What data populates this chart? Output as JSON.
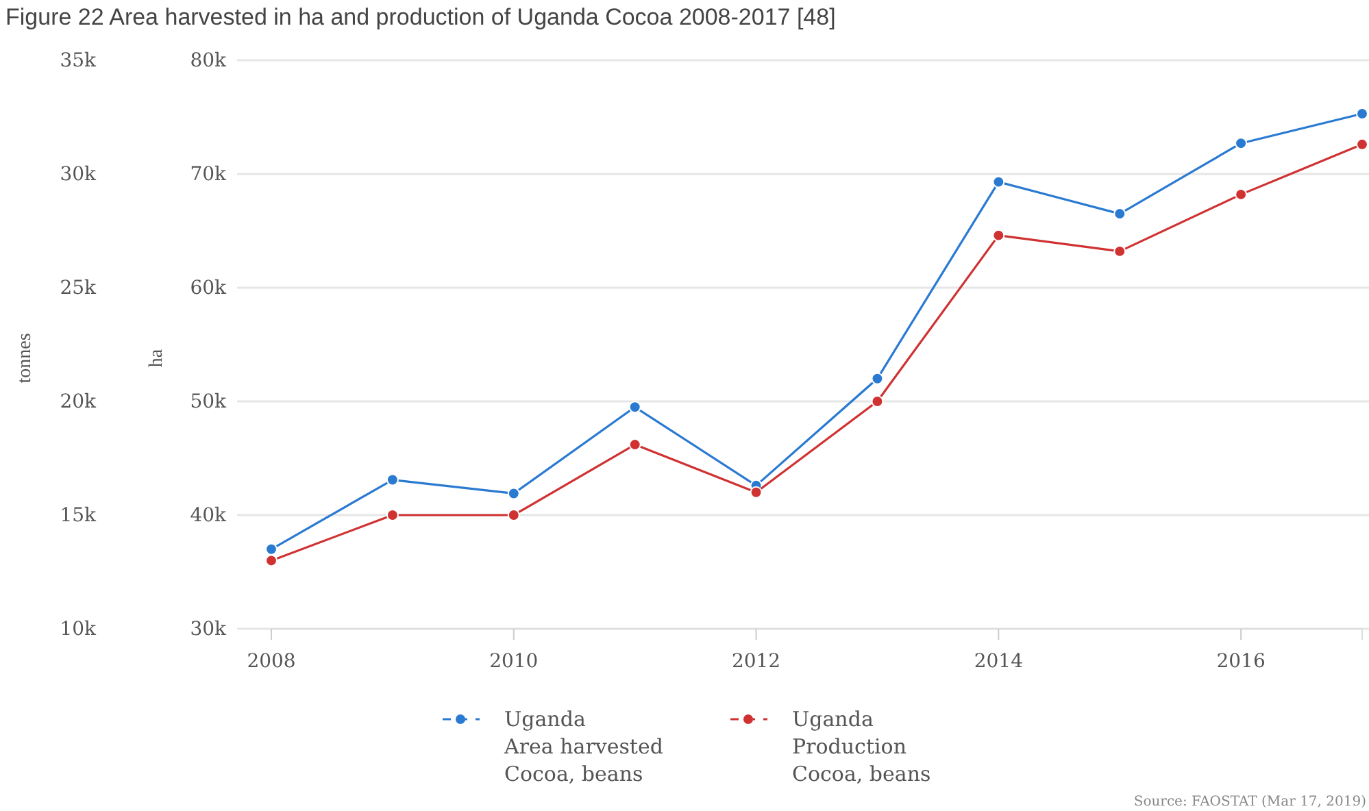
{
  "chart_data": {
    "type": "line",
    "title": "Figure 22 Area harvested in ha and production of Uganda Cocoa 2008-2017 [48]",
    "x": [
      2008,
      2009,
      2010,
      2011,
      2012,
      2013,
      2014,
      2015,
      2016,
      2017
    ],
    "series": [
      {
        "name": "Uganda\nArea harvested\nCocoa, beans",
        "color": "#2a7ad2",
        "axis": "y2",
        "values": [
          37000,
          43100,
          41900,
          49500,
          42600,
          52000,
          69300,
          66500,
          72700,
          75300
        ]
      },
      {
        "name": "Uganda\nProduction\nCocoa, beans",
        "color": "#d03232",
        "axis": "y",
        "values": [
          13000,
          15000,
          15000,
          18100,
          16000,
          20000,
          27300,
          26600,
          29100,
          31300
        ]
      }
    ],
    "xlim": [
      2008,
      2017
    ],
    "xticks": [
      2008,
      2010,
      2012,
      2014,
      2016
    ],
    "ylabel": "tonnes",
    "ylim": [
      10000,
      35000
    ],
    "yticks": [
      {
        "value": 10000,
        "label": "10k"
      },
      {
        "value": 15000,
        "label": "15k"
      },
      {
        "value": 20000,
        "label": "20k"
      },
      {
        "value": 25000,
        "label": "25k"
      },
      {
        "value": 30000,
        "label": "30k"
      },
      {
        "value": 35000,
        "label": "35k"
      }
    ],
    "y2label": "ha",
    "y2lim": [
      30000,
      80000
    ],
    "y2ticks": [
      {
        "value": 30000,
        "label": "30k"
      },
      {
        "value": 40000,
        "label": "40k"
      },
      {
        "value": 50000,
        "label": "50k"
      },
      {
        "value": 60000,
        "label": "60k"
      },
      {
        "value": 70000,
        "label": "70k"
      },
      {
        "value": 80000,
        "label": "80k"
      }
    ],
    "grid": "y",
    "legend": "bottom",
    "marker": "circle",
    "line_style": "solid",
    "annotations": [
      "Source: FAOSTAT (Mar 17, 2019)"
    ]
  }
}
